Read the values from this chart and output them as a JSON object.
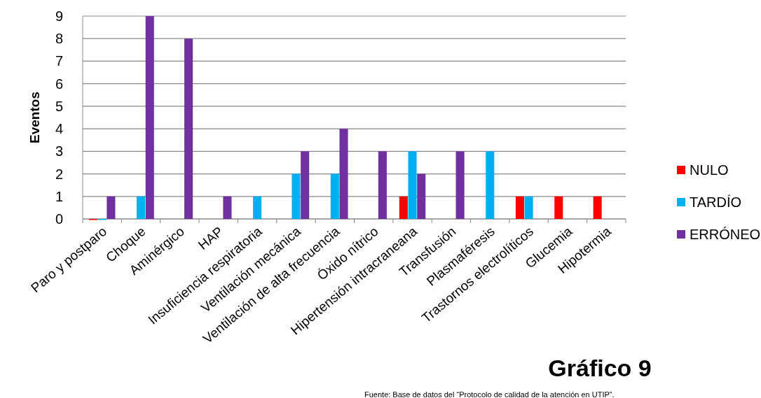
{
  "chart_data": {
    "type": "bar",
    "title": "Gráfico 9",
    "ylabel": "Eventos",
    "categories": [
      "Paro y postparo",
      "Choque",
      "Aminérgico",
      "HAP",
      "Insuficiencia respiratoria",
      "Ventilación mecánica",
      "Ventilación de alta frecuencia",
      "Óxido nítrico",
      "Hipertensión intracraneana",
      "Transfusión",
      "Plasmaféresis",
      "Trastornos electrolíticos",
      "Glucemia",
      "Hipotermia"
    ],
    "series": [
      {
        "name": "NULO",
        "color": "#ff0000",
        "values": [
          0,
          null,
          null,
          null,
          null,
          null,
          null,
          null,
          1,
          null,
          null,
          1,
          1,
          1
        ]
      },
      {
        "name": "TARDÍO",
        "color": "#00b0f0",
        "values": [
          0,
          1,
          null,
          null,
          1,
          2,
          2,
          null,
          3,
          null,
          3,
          1,
          null,
          null
        ]
      },
      {
        "name": "ERRÓNEO",
        "color": "#7030a0",
        "values": [
          1,
          9,
          8,
          1,
          null,
          3,
          4,
          3,
          2,
          3,
          null,
          null,
          null,
          null
        ]
      }
    ],
    "ylim": [
      0,
      9
    ],
    "yticks": [
      0,
      1,
      2,
      3,
      4,
      5,
      6,
      7,
      8,
      9
    ],
    "grid": "y",
    "legend": "right",
    "annotations": [
      "Fuente: Base de datos del “Protocolo de calidad de la atención en UTIP”."
    ]
  }
}
